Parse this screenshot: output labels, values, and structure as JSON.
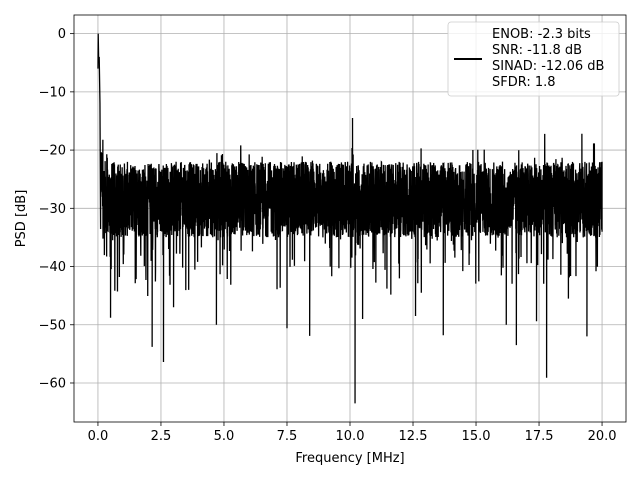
{
  "chart_data": {
    "type": "line",
    "title": "",
    "xlabel": "Frequency [MHz]",
    "ylabel": "PSD [dB]",
    "xlim": [
      -0.95,
      20.95
    ],
    "ylim": [
      -66.7,
      3.2
    ],
    "xticks": [
      0.0,
      2.5,
      5.0,
      7.5,
      10.0,
      12.5,
      15.0,
      17.5,
      20.0
    ],
    "xtick_labels": [
      "0.0",
      "2.5",
      "5.0",
      "7.5",
      "10.0",
      "12.5",
      "15.0",
      "17.5",
      "20.0"
    ],
    "yticks": [
      0,
      -10,
      -20,
      -30,
      -40,
      -50,
      -60
    ],
    "ytick_labels": [
      "0",
      "−10",
      "−20",
      "−30",
      "−40",
      "−50",
      "−60"
    ],
    "grid": true,
    "legend_position": "top-right",
    "series": [
      {
        "name": "ENOB: -2.3 bits\nSNR: -11.8 dB\nSINAD: -12.06 dB\nSFDR: 1.8",
        "legend_lines": [
          "ENOB: -2.3 bits",
          "SNR: -11.8 dB",
          "SINAD: -12.06 dB",
          "SFDR: 1.8"
        ],
        "color": "#000000",
        "x_range": [
          0,
          20
        ],
        "noise_band": [
          -35,
          -22
        ],
        "notable_points": [
          {
            "x": 0.0,
            "y": 0.0
          },
          {
            "x": 0.02,
            "y": -6
          },
          {
            "x": 0.05,
            "y": -4
          },
          {
            "x": 0.1,
            "y": -20
          },
          {
            "x": 0.1,
            "y": -30.5
          },
          {
            "x": 0.5,
            "y": -48.8
          },
          {
            "x": 0.85,
            "y": -41.8
          },
          {
            "x": 1.9,
            "y": -39.5
          },
          {
            "x": 2.15,
            "y": -53.8
          },
          {
            "x": 2.6,
            "y": -56.4
          },
          {
            "x": 3.0,
            "y": -47
          },
          {
            "x": 3.6,
            "y": -44
          },
          {
            "x": 4.7,
            "y": -50
          },
          {
            "x": 7.5,
            "y": -50.6
          },
          {
            "x": 8.4,
            "y": -51.9
          },
          {
            "x": 10.2,
            "y": -63.5
          },
          {
            "x": 10.1,
            "y": -14.5
          },
          {
            "x": 10.5,
            "y": -49
          },
          {
            "x": 12.6,
            "y": -48.5
          },
          {
            "x": 13.7,
            "y": -51.8
          },
          {
            "x": 16.2,
            "y": -50
          },
          {
            "x": 16.6,
            "y": -53.5
          },
          {
            "x": 17.8,
            "y": -59.1
          },
          {
            "x": 17.4,
            "y": -49.4
          },
          {
            "x": 19.2,
            "y": -17.2
          },
          {
            "x": 19.4,
            "y": -52
          },
          {
            "x": 20.0,
            "y": -22
          }
        ]
      }
    ]
  }
}
